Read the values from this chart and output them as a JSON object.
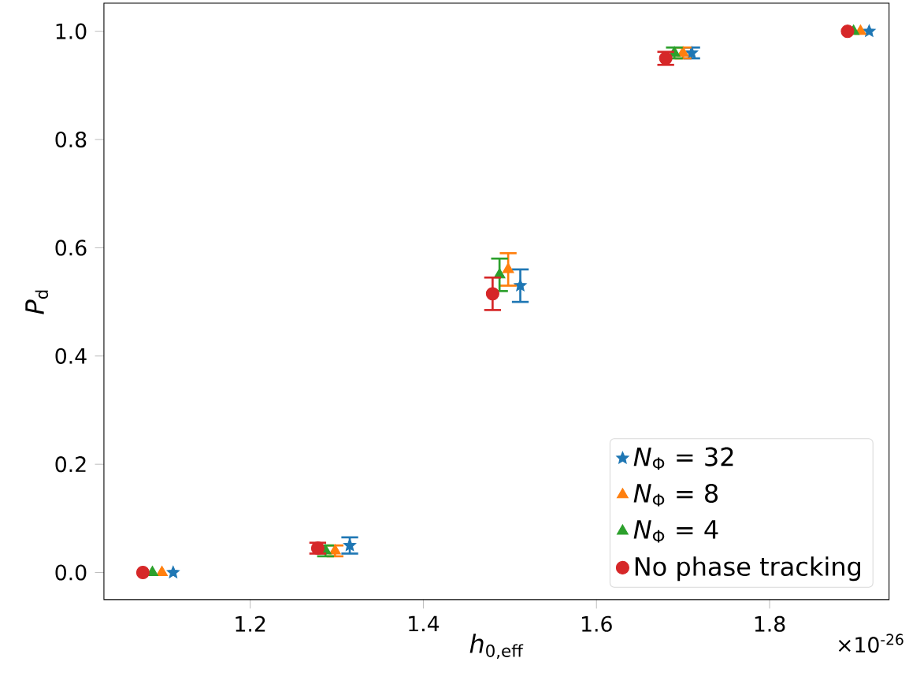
{
  "chart_data": {
    "type": "scatter",
    "xlabel": "*h*$_{0,eff}$",
    "ylabel": "*P*$_{d}$",
    "xlim": [
      1.031,
      1.938
    ],
    "ylim": [
      -0.05,
      1.052
    ],
    "xticks": [
      1.2,
      1.4,
      1.6,
      1.8
    ],
    "yticks": [
      {
        "value": 0,
        "label": "0.0"
      },
      0.2,
      0.4,
      0.6,
      0.8,
      {
        "value": 1,
        "label": "1.0"
      }
    ],
    "annotations": [
      "×10$^{-26}$"
    ],
    "legend": "bottom right",
    "grid": false,
    "series": [
      {
        "name": "*N*$_{Φ}$ = 32",
        "color": "#1f77b4",
        "marker": "star",
        "x": [
          1.111,
          1.315,
          1.512,
          1.71,
          1.915
        ],
        "values": [
          0.0,
          0.05,
          0.53,
          0.96,
          1.0
        ],
        "errors": [
          null,
          0.015,
          0.03,
          0.01,
          null
        ]
      },
      {
        "name": "*N*$_{Φ}$ = 8",
        "color": "#ff7f0e",
        "marker": "triangle",
        "x": [
          1.098,
          1.298,
          1.498,
          1.7,
          1.905
        ],
        "values": [
          0.0,
          0.04,
          0.56,
          0.96,
          1.0
        ],
        "errors": [
          null,
          0.01,
          0.03,
          0.01,
          null
        ]
      },
      {
        "name": "*N*$_{Φ}$ = 4",
        "color": "#2ca02c",
        "marker": "triangle",
        "x": [
          1.087,
          1.287,
          1.488,
          1.69,
          1.897
        ],
        "values": [
          0.0,
          0.04,
          0.55,
          0.96,
          1.0
        ],
        "errors": [
          null,
          0.01,
          0.03,
          0.01,
          null
        ]
      },
      {
        "name": "No phase tracking",
        "color": "#d62728",
        "marker": "circle",
        "x": [
          1.076,
          1.278,
          1.48,
          1.68,
          1.89
        ],
        "values": [
          0.0,
          0.045,
          0.515,
          0.95,
          1.0
        ],
        "errors": [
          null,
          0.01,
          0.03,
          0.012,
          null
        ]
      }
    ]
  }
}
